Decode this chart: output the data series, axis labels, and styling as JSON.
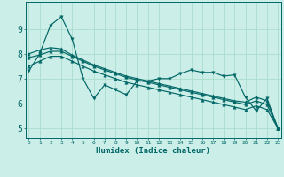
{
  "xlabel": "Humidex (Indice chaleur)",
  "bg_color": "#cceee8",
  "line_color": "#006666",
  "grid_color": "#aaddcc",
  "x_values": [
    0,
    1,
    2,
    3,
    4,
    5,
    6,
    7,
    8,
    9,
    10,
    11,
    12,
    13,
    14,
    15,
    16,
    17,
    18,
    19,
    20,
    21,
    22,
    23
  ],
  "series1": [
    7.3,
    8.0,
    9.15,
    9.5,
    8.6,
    7.0,
    6.2,
    6.75,
    6.55,
    6.35,
    6.9,
    6.9,
    7.0,
    7.0,
    7.2,
    7.35,
    7.25,
    7.25,
    7.1,
    7.15,
    6.25,
    5.7,
    6.2,
    5.0
  ],
  "series2": [
    8.0,
    8.15,
    8.25,
    8.2,
    7.95,
    7.75,
    7.55,
    7.4,
    7.25,
    7.1,
    7.0,
    6.9,
    6.8,
    6.7,
    6.6,
    6.5,
    6.4,
    6.3,
    6.2,
    6.1,
    6.05,
    6.25,
    6.1,
    5.0
  ],
  "series3": [
    7.85,
    7.95,
    8.1,
    8.1,
    7.9,
    7.7,
    7.5,
    7.35,
    7.2,
    7.05,
    6.95,
    6.85,
    6.75,
    6.65,
    6.55,
    6.45,
    6.35,
    6.25,
    6.15,
    6.05,
    5.95,
    6.1,
    5.95,
    5.0
  ],
  "series4": [
    7.5,
    7.7,
    7.9,
    7.9,
    7.7,
    7.5,
    7.3,
    7.15,
    7.0,
    6.85,
    6.75,
    6.65,
    6.55,
    6.45,
    6.35,
    6.25,
    6.15,
    6.05,
    5.95,
    5.85,
    5.75,
    5.9,
    5.75,
    5.0
  ],
  "ylim": [
    4.6,
    10.1
  ],
  "yticks": [
    5,
    6,
    7,
    8,
    9
  ],
  "xlim": [
    -0.3,
    23.3
  ]
}
